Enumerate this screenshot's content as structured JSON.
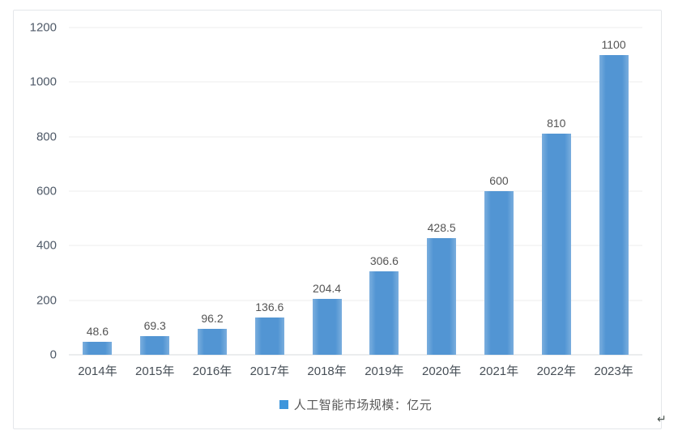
{
  "page": {
    "background": "#ffffff",
    "paragraph_mark": "↵"
  },
  "chart_data": {
    "type": "bar",
    "title": "",
    "categories": [
      "2014年",
      "2015年",
      "2016年",
      "2017年",
      "2018年",
      "2019年",
      "2020年",
      "2021年",
      "2022年",
      "2023年"
    ],
    "values": [
      48.6,
      69.3,
      96.2,
      136.6,
      204.4,
      306.6,
      428.5,
      600,
      810,
      1100
    ],
    "value_labels": [
      "48.6",
      "69.3",
      "96.2",
      "136.6",
      "204.4",
      "306.6",
      "428.5",
      "600",
      "810",
      "1100"
    ],
    "xlabel": "",
    "ylabel": "",
    "ylim": [
      0,
      1200
    ],
    "y_ticks": [
      0,
      200,
      400,
      600,
      800,
      1000,
      1200
    ],
    "grid": true,
    "legend": {
      "position": "bottom",
      "entries": [
        {
          "label": "人工智能市场规模：亿元",
          "marker_color": "#3e96dc"
        }
      ]
    },
    "colors": {
      "bar": "#5295d3",
      "bar_edge_highlight": "#7aaede",
      "gridline": "#ecedee",
      "baseline": "#d7dbdd",
      "tick_text": "#4f5a68",
      "value_text": "#545454",
      "category_text": "#474f57",
      "legend_text": "#595959",
      "frame_border": "#e4e7ea"
    }
  }
}
